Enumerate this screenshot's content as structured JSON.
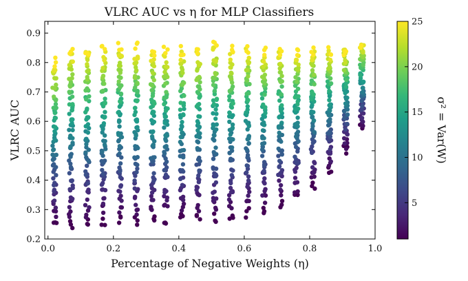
{
  "chart_data": {
    "type": "scatter",
    "title": "VLRC AUC vs η for MLP Classifiers",
    "xlabel": "Percentage of Negative Weights (η)",
    "ylabel": "VLRC AUC",
    "colorbar_label": "σ² = Var(W)",
    "xlim": [
      -0.01,
      1.0
    ],
    "ylim": [
      0.2,
      0.94
    ],
    "xticks": [
      0.0,
      0.2,
      0.4,
      0.6,
      0.8,
      1.0
    ],
    "xtick_labels": [
      "0.0",
      "0.2",
      "0.4",
      "0.6",
      "0.8",
      "1.0"
    ],
    "yticks": [
      0.2,
      0.3,
      0.4,
      0.5,
      0.6,
      0.7,
      0.8,
      0.9
    ],
    "ytick_labels": [
      "0.2",
      "0.3",
      "0.4",
      "0.5",
      "0.6",
      "0.7",
      "0.8",
      "0.9"
    ],
    "colorbar_range": [
      1,
      25
    ],
    "colorbar_ticks": [
      5,
      10,
      15,
      20,
      25
    ],
    "colorbar_tick_labels": [
      "5",
      "10",
      "15",
      "20",
      "25"
    ],
    "colormap": "viridis",
    "eta_columns": [
      0.02,
      0.07,
      0.12,
      0.17,
      0.22,
      0.27,
      0.32,
      0.36,
      0.41,
      0.46,
      0.51,
      0.56,
      0.61,
      0.66,
      0.71,
      0.76,
      0.81,
      0.86,
      0.91,
      0.96
    ],
    "sigma_levels": [
      1,
      2,
      3,
      4,
      5,
      6,
      7,
      8,
      9,
      10,
      11,
      12,
      13,
      14,
      15,
      16,
      17,
      18,
      19,
      20,
      21,
      22,
      23,
      24,
      25
    ],
    "trend_note": "AUC rises with sigma^2; low-sigma floor ~0.25 at low eta rising toward ~0.6 at eta~0.96; high-sigma values ~0.7-0.9 across eta",
    "auc_low_sigma_by_eta": [
      0.25,
      0.25,
      0.25,
      0.26,
      0.26,
      0.26,
      0.26,
      0.27,
      0.27,
      0.27,
      0.27,
      0.28,
      0.29,
      0.3,
      0.32,
      0.34,
      0.38,
      0.43,
      0.5,
      0.58
    ],
    "auc_high_sigma_by_eta": [
      0.8,
      0.84,
      0.84,
      0.84,
      0.86,
      0.85,
      0.84,
      0.84,
      0.84,
      0.84,
      0.86,
      0.84,
      0.85,
      0.84,
      0.84,
      0.84,
      0.84,
      0.84,
      0.84,
      0.86
    ],
    "colors": {
      "viridis": [
        "#440154",
        "#482878",
        "#3e4989",
        "#31688e",
        "#26828e",
        "#1f9e89",
        "#35b779",
        "#6ece58",
        "#b5de2b",
        "#fde725"
      ],
      "axis": "#000000"
    }
  }
}
